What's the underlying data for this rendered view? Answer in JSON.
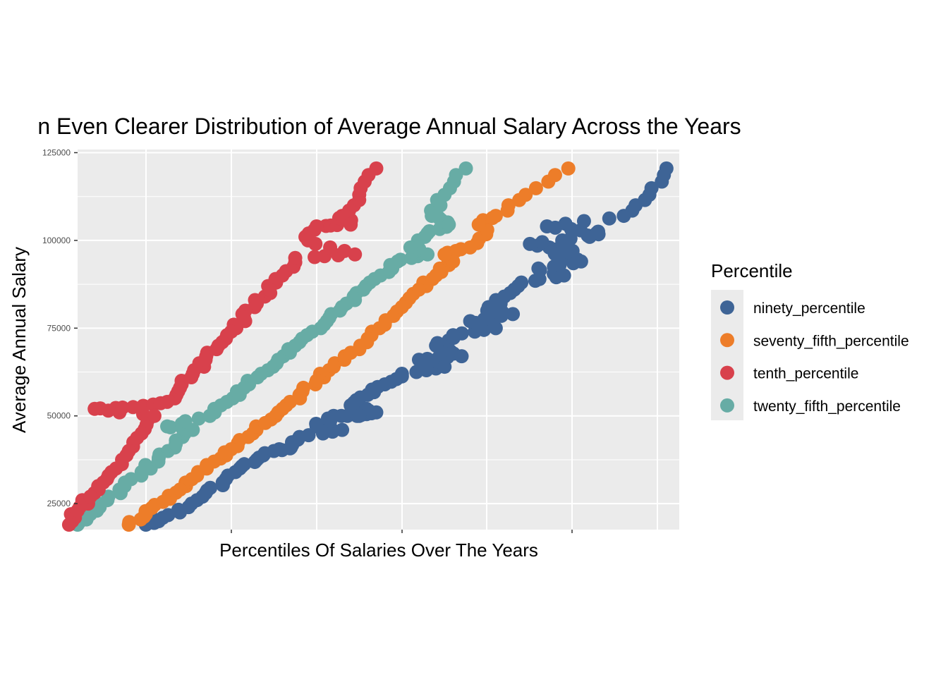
{
  "chart_data": {
    "type": "scatter",
    "title": "n Even Clearer Distribution of Average Annual Salary Across the Years",
    "xlabel": "Percentiles Of Salaries Over The Years",
    "ylabel": "Average Annual Salary",
    "x_tick_labels": "none",
    "y_ticks": [
      25000,
      50000,
      75000,
      100000,
      125000
    ],
    "y_tick_labels": [
      "25000",
      "50000",
      "75000",
      "100000",
      "125000"
    ],
    "ylim": [
      17600,
      125900
    ],
    "x_domain_approx": [
      0.2,
      7.25
    ],
    "grid": true,
    "legend": {
      "title": "Percentile",
      "placement": "right",
      "entries": [
        {
          "label": "ninety_percentile",
          "color": "#3E6496"
        },
        {
          "label": "seventy_fifth_percentile",
          "color": "#ED7D29"
        },
        {
          "label": "tenth_percentile",
          "color": "#D8414C"
        },
        {
          "label": "twenty_fifth_percentile",
          "color": "#67ACA5"
        }
      ]
    },
    "series": [
      {
        "name": "ninety_percentile",
        "color": "#3E6496",
        "points": [
          [
            1.0,
            19000
          ],
          [
            1.2,
            21000
          ],
          [
            1.5,
            24000
          ],
          [
            1.7,
            28000
          ],
          [
            1.9,
            31000
          ],
          [
            2.1,
            35000
          ],
          [
            2.3,
            37500
          ],
          [
            2.5,
            40000
          ],
          [
            2.8,
            44000
          ],
          [
            3.0,
            47000
          ],
          [
            3.2,
            50000
          ],
          [
            3.4,
            53000
          ],
          [
            3.6,
            56000
          ],
          [
            3.8,
            59000
          ],
          [
            4.0,
            62000
          ],
          [
            4.2,
            66000
          ],
          [
            4.4,
            70000
          ],
          [
            4.6,
            73000
          ],
          [
            4.8,
            77000
          ],
          [
            5.0,
            80000
          ],
          [
            5.2,
            84000
          ],
          [
            5.4,
            88000
          ],
          [
            5.6,
            92000
          ],
          [
            5.8,
            96000
          ],
          [
            6.0,
            97000
          ],
          [
            6.2,
            101000
          ],
          [
            6.3,
            102500
          ],
          [
            6.6,
            107000
          ],
          [
            6.9,
            113000
          ],
          [
            7.1,
            120500
          ],
          [
            2.7,
            41000
          ],
          [
            3.3,
            46000
          ],
          [
            3.5,
            50000
          ],
          [
            3.7,
            51000
          ],
          [
            4.5,
            64000
          ],
          [
            4.7,
            67000
          ],
          [
            5.1,
            75000
          ],
          [
            5.3,
            79000
          ],
          [
            5.9,
            90000
          ],
          [
            6.1,
            94000
          ],
          [
            5.5,
            99000
          ],
          [
            5.7,
            104000
          ]
        ]
      },
      {
        "name": "seventy_fifth_percentile",
        "color": "#ED7D29",
        "points": [
          [
            0.8,
            19000
          ],
          [
            1.0,
            22000
          ],
          [
            1.2,
            25500
          ],
          [
            1.4,
            29000
          ],
          [
            1.6,
            33000
          ],
          [
            1.8,
            37000
          ],
          [
            2.0,
            40500
          ],
          [
            2.2,
            44000
          ],
          [
            2.4,
            48000
          ],
          [
            2.6,
            52000
          ],
          [
            2.8,
            56000
          ],
          [
            3.0,
            60000
          ],
          [
            3.2,
            64000
          ],
          [
            3.4,
            68000
          ],
          [
            3.6,
            72000
          ],
          [
            3.8,
            76000
          ],
          [
            4.0,
            81000
          ],
          [
            4.2,
            86000
          ],
          [
            4.4,
            90000
          ],
          [
            4.6,
            94000
          ],
          [
            4.8,
            98000
          ],
          [
            5.0,
            103000
          ],
          [
            5.1,
            107000
          ],
          [
            5.45,
            113000
          ],
          [
            5.95,
            120500
          ],
          [
            4.9,
            104500
          ],
          [
            4.5,
            96000
          ]
        ]
      },
      {
        "name": "tenth_percentile",
        "color": "#D8414C",
        "points": [
          [
            0.1,
            19000
          ],
          [
            0.2,
            23000
          ],
          [
            0.35,
            27000
          ],
          [
            0.5,
            31000
          ],
          [
            0.65,
            35000
          ],
          [
            0.8,
            40000
          ],
          [
            0.95,
            45000
          ],
          [
            1.1,
            50000
          ],
          [
            1.25,
            54000
          ],
          [
            1.4,
            58000
          ],
          [
            1.55,
            62000
          ],
          [
            1.7,
            66000
          ],
          [
            1.85,
            70000
          ],
          [
            2.0,
            74000
          ],
          [
            2.15,
            78000
          ],
          [
            2.3,
            82000
          ],
          [
            2.45,
            86000
          ],
          [
            2.6,
            90000
          ],
          [
            2.75,
            95000
          ],
          [
            2.9,
            100000
          ],
          [
            3.0,
            104000
          ],
          [
            3.3,
            107000
          ],
          [
            3.5,
            113000
          ],
          [
            3.7,
            120500
          ],
          [
            0.4,
            52000
          ],
          [
            0.85,
            52500
          ],
          [
            3.4,
            104500
          ],
          [
            3.45,
            96000
          ]
        ]
      },
      {
        "name": "twenty_fifth_percentile",
        "color": "#67ACA5",
        "points": [
          [
            0.2,
            19000
          ],
          [
            0.35,
            22000
          ],
          [
            0.55,
            26000
          ],
          [
            0.75,
            30000
          ],
          [
            0.95,
            34000
          ],
          [
            1.15,
            38000
          ],
          [
            1.35,
            42000
          ],
          [
            1.55,
            46000
          ],
          [
            1.75,
            50000
          ],
          [
            1.95,
            54000
          ],
          [
            2.15,
            58000
          ],
          [
            2.35,
            62000
          ],
          [
            2.55,
            66000
          ],
          [
            2.75,
            70000
          ],
          [
            2.95,
            74000
          ],
          [
            3.15,
            78000
          ],
          [
            3.35,
            82000
          ],
          [
            3.55,
            86000
          ],
          [
            3.75,
            90000
          ],
          [
            3.95,
            94000
          ],
          [
            4.1,
            98000
          ],
          [
            4.3,
            102000
          ],
          [
            4.35,
            107000
          ],
          [
            4.55,
            104500
          ],
          [
            4.5,
            113000
          ],
          [
            4.75,
            120500
          ],
          [
            1.25,
            47000
          ],
          [
            4.3,
            96000
          ]
        ]
      }
    ]
  }
}
